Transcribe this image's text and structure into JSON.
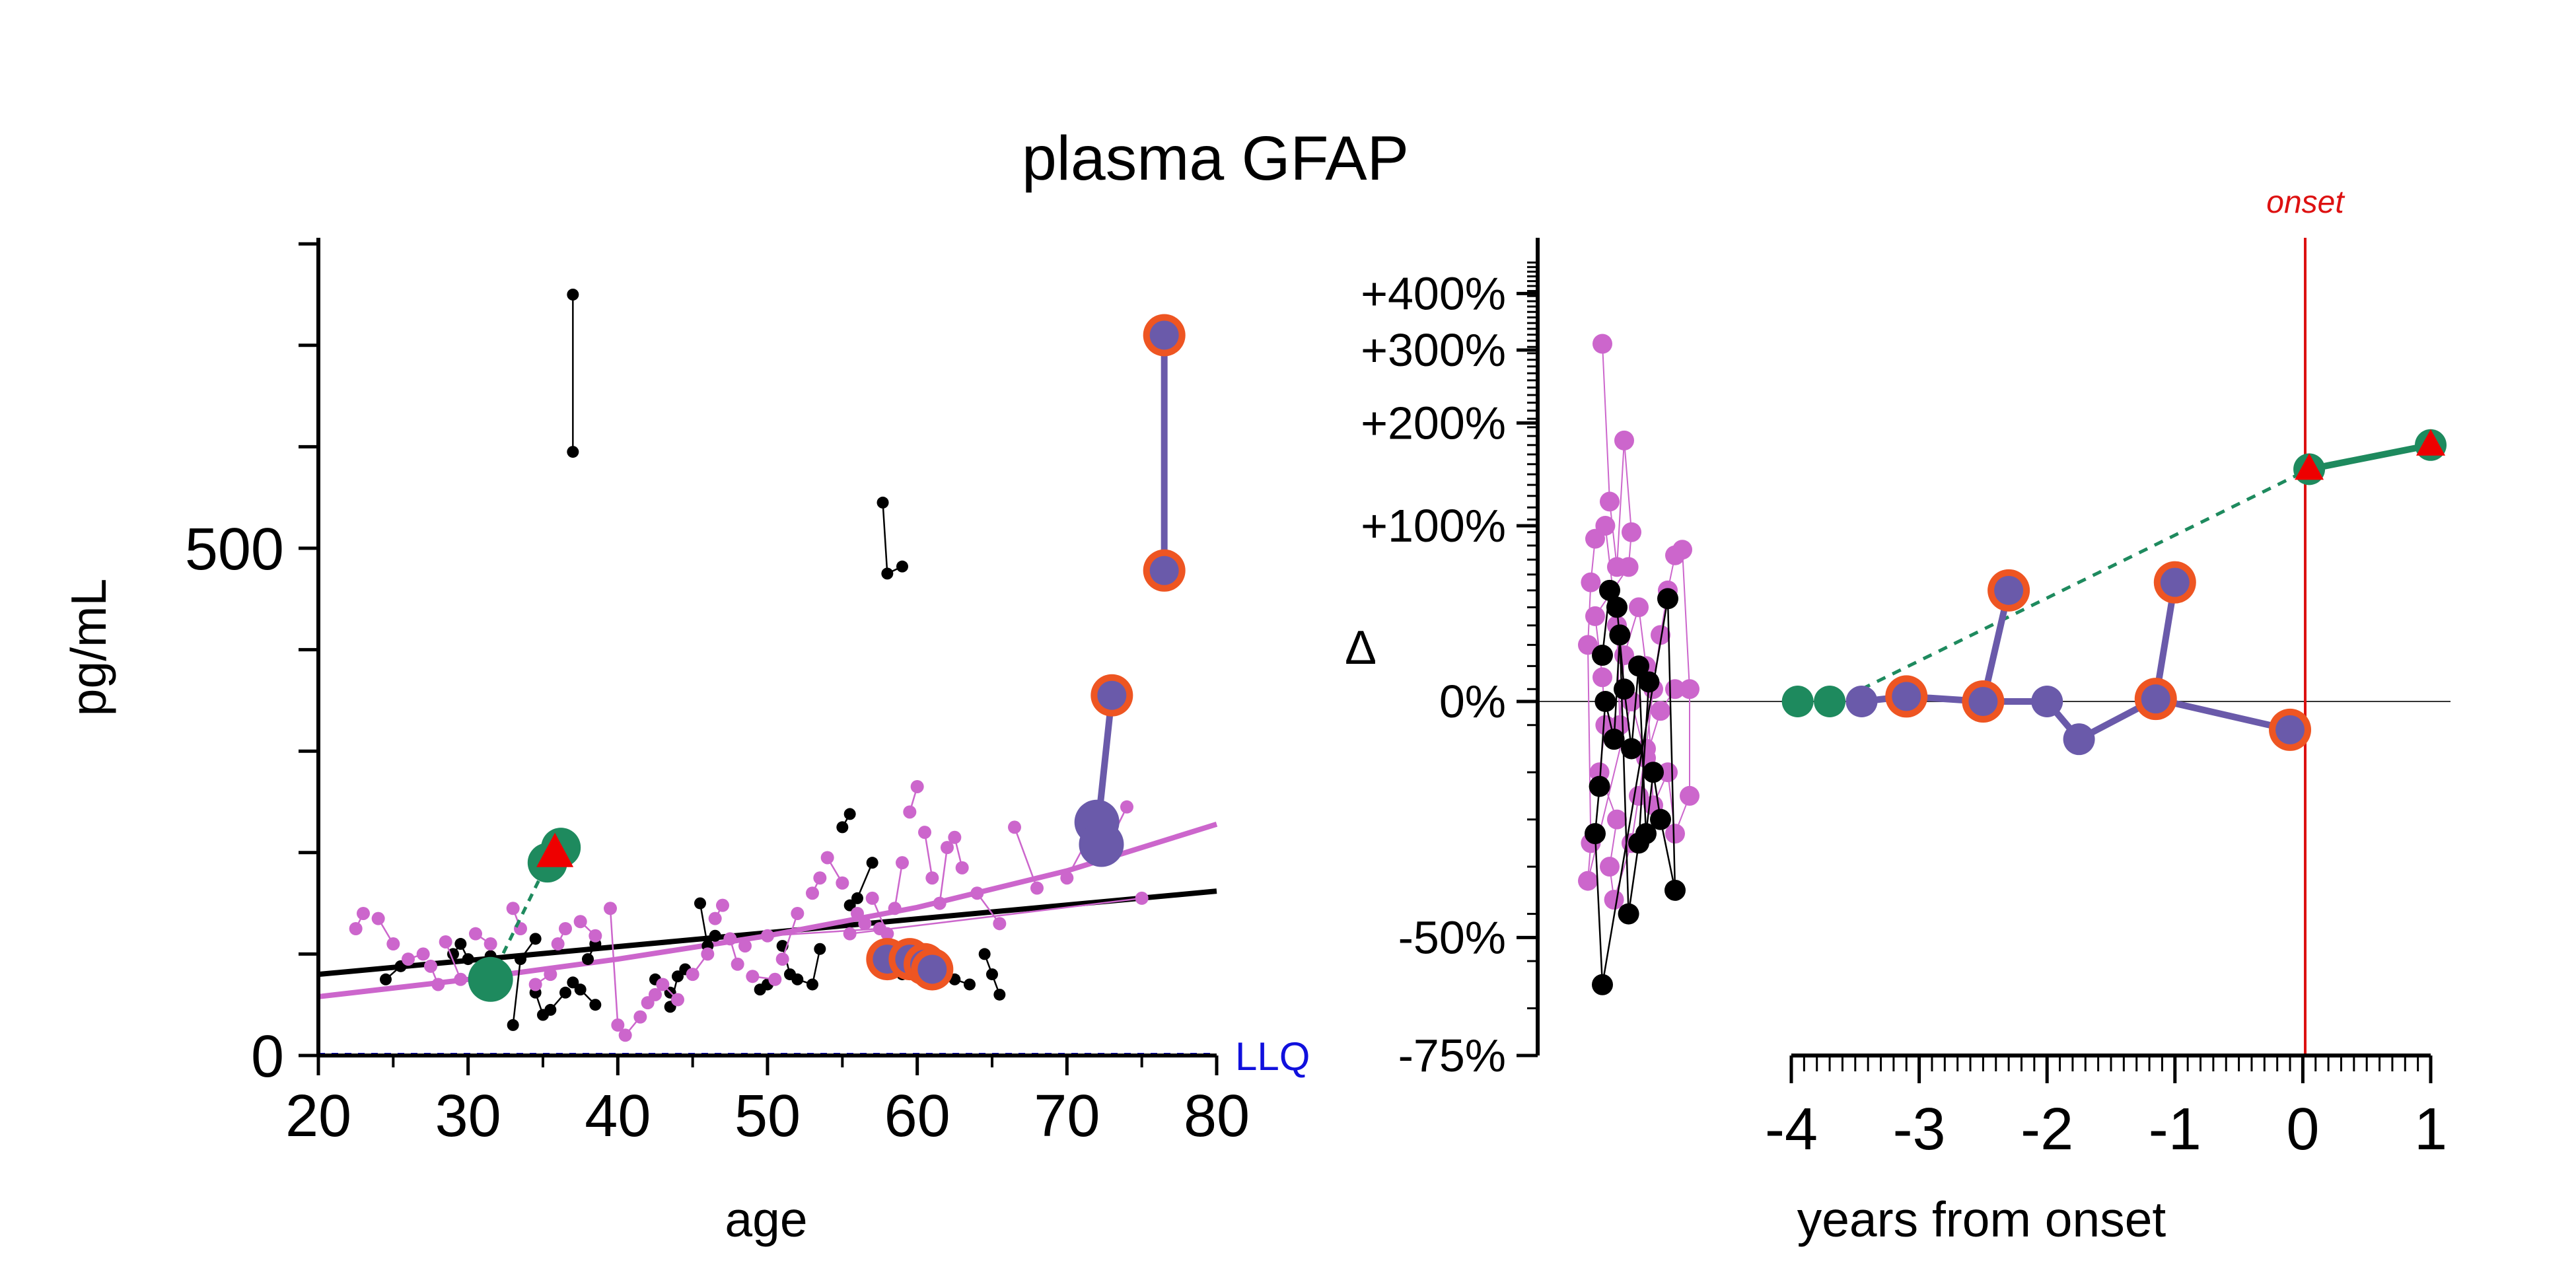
{
  "chart_data": [
    {
      "type": "scatter",
      "title": "plasma GFAP",
      "xlabel": "age",
      "ylabel": "pg/mL",
      "xlim": [
        20,
        80
      ],
      "ylim": [
        0,
        800
      ],
      "xticks": [
        20,
        30,
        40,
        50,
        60,
        70,
        80
      ],
      "yticks_labeled": [
        0,
        500
      ],
      "yticks_minor": [
        100,
        200,
        300,
        400,
        600,
        700,
        800
      ],
      "llq_label": "LLQ",
      "llq_value": 0,
      "colors": {
        "controls": "#000000",
        "noncarriers": "#cc66cc",
        "converter_green": "#1e8a5e",
        "converter_purple": "#6a5aaa",
        "ring_orange": "#ee5522",
        "red_triangle": "#ee0000",
        "llq_line": "#1010dd"
      },
      "fit_lines": [
        {
          "color": "#000000",
          "x": [
            20,
            80
          ],
          "y": [
            80,
            162
          ]
        },
        {
          "color": "#cc66cc",
          "x": [
            20,
            30,
            40,
            50,
            60,
            70,
            80
          ],
          "y": [
            58,
            75,
            95,
            118,
            146,
            182,
            228
          ]
        }
      ],
      "black_pairs": [
        [
          [
            37.0,
            750
          ],
          [
            37.0,
            595
          ]
        ],
        [
          [
            57.7,
            545
          ],
          [
            58.0,
            475
          ],
          [
            59.0,
            482
          ]
        ],
        [
          [
            24.5,
            75
          ],
          [
            25.5,
            88
          ]
        ],
        [
          [
            29.0,
            100
          ],
          [
            29.5,
            110
          ],
          [
            30.0,
            95
          ]
        ],
        [
          [
            31.5,
            98
          ],
          [
            32.5,
            82
          ]
        ],
        [
          [
            33.0,
            30
          ],
          [
            33.5,
            95
          ],
          [
            34.5,
            115
          ]
        ],
        [
          [
            34.5,
            62
          ],
          [
            35.0,
            40
          ]
        ],
        [
          [
            35.5,
            45
          ],
          [
            36.5,
            62
          ]
        ],
        [
          [
            37.0,
            72
          ],
          [
            37.5,
            65
          ],
          [
            38.5,
            50
          ]
        ],
        [
          [
            38.5,
            110
          ],
          [
            38.0,
            95
          ]
        ],
        [
          [
            42.5,
            75
          ],
          [
            43.5,
            62
          ]
        ],
        [
          [
            43.5,
            48
          ],
          [
            44.0,
            78
          ],
          [
            44.5,
            85
          ]
        ],
        [
          [
            45.5,
            150
          ],
          [
            46.0,
            108
          ],
          [
            46.5,
            118
          ]
        ],
        [
          [
            49.5,
            65
          ],
          [
            50.0,
            70
          ]
        ],
        [
          [
            51.0,
            108
          ],
          [
            51.5,
            80
          ]
        ],
        [
          [
            52.0,
            75
          ],
          [
            53.0,
            70
          ],
          [
            53.5,
            105
          ]
        ],
        [
          [
            55.0,
            225
          ],
          [
            55.5,
            238
          ]
        ],
        [
          [
            55.5,
            148
          ],
          [
            56.0,
            155
          ],
          [
            57.0,
            190
          ]
        ],
        [
          [
            58.0,
            85
          ],
          [
            59.0,
            80
          ]
        ],
        [
          [
            60.5,
            95
          ],
          [
            61.0,
            85
          ]
        ],
        [
          [
            64.5,
            100
          ],
          [
            65.0,
            80
          ],
          [
            65.5,
            60
          ]
        ],
        [
          [
            62.5,
            75
          ],
          [
            63.5,
            70
          ]
        ]
      ],
      "pink_points": [
        [
          22.5,
          125
        ],
        [
          23.0,
          140
        ],
        [
          24.0,
          135
        ],
        [
          25.0,
          110
        ],
        [
          26.0,
          95
        ],
        [
          27.0,
          100
        ],
        [
          27.5,
          88
        ],
        [
          28.0,
          70
        ],
        [
          28.5,
          112
        ],
        [
          29.5,
          75
        ],
        [
          30.5,
          120
        ],
        [
          31.5,
          110
        ],
        [
          33.0,
          145
        ],
        [
          33.5,
          125
        ],
        [
          34.5,
          70
        ],
        [
          35.5,
          80
        ],
        [
          36.0,
          110
        ],
        [
          36.5,
          125
        ],
        [
          37.5,
          132
        ],
        [
          38.5,
          118
        ],
        [
          39.5,
          145
        ],
        [
          40.0,
          30
        ],
        [
          40.5,
          20
        ],
        [
          41.5,
          38
        ],
        [
          42.0,
          52
        ],
        [
          42.5,
          60
        ],
        [
          43.0,
          70
        ],
        [
          44.0,
          55
        ],
        [
          45.0,
          80
        ],
        [
          46.0,
          100
        ],
        [
          46.5,
          135
        ],
        [
          47.0,
          148
        ],
        [
          47.5,
          115
        ],
        [
          48.0,
          90
        ],
        [
          49.0,
          78
        ],
        [
          50.5,
          75
        ],
        [
          51.0,
          95
        ],
        [
          52.0,
          140
        ],
        [
          53.0,
          160
        ],
        [
          53.5,
          175
        ],
        [
          54.0,
          195
        ],
        [
          55.0,
          170
        ],
        [
          56.0,
          140
        ],
        [
          56.5,
          130
        ],
        [
          57.0,
          155
        ],
        [
          58.0,
          120
        ],
        [
          58.5,
          145
        ],
        [
          59.0,
          190
        ],
        [
          59.5,
          240
        ],
        [
          60.0,
          265
        ],
        [
          60.5,
          220
        ],
        [
          61.0,
          175
        ],
        [
          61.5,
          150
        ],
        [
          62.0,
          205
        ],
        [
          62.5,
          215
        ],
        [
          63.0,
          185
        ],
        [
          64.0,
          160
        ],
        [
          65.5,
          130
        ],
        [
          66.5,
          225
        ],
        [
          68.0,
          165
        ],
        [
          70.0,
          175
        ],
        [
          72.0,
          230
        ],
        [
          73.0,
          215
        ],
        [
          74.0,
          245
        ],
        [
          75.0,
          155
        ],
        [
          55.5,
          120
        ],
        [
          57.5,
          125
        ],
        [
          50.0,
          118
        ],
        [
          48.5,
          108
        ]
      ],
      "green_converter": [
        [
          31.5,
          75
        ],
        [
          35.3,
          190
        ],
        [
          36.2,
          205
        ]
      ],
      "red_triangle": [
        35.8,
        200
      ],
      "purple_converter_big": [
        [
          72.0,
          230
        ],
        [
          72.3,
          208
        ]
      ],
      "purple_converter_line": [
        [
          72.1,
          230
        ],
        [
          73.0,
          355
        ]
      ],
      "purple_converter_points": [
        [
          73.0,
          355
        ],
        [
          76.5,
          710
        ],
        [
          76.5,
          478
        ],
        [
          58.0,
          95
        ],
        [
          59.5,
          95
        ],
        [
          60.5,
          90
        ],
        [
          61.0,
          85
        ]
      ],
      "top_pair_line": [
        [
          76.5,
          710
        ],
        [
          76.5,
          478
        ]
      ]
    },
    {
      "type": "scatter",
      "xlabel": "years from onset",
      "ylabel": "Δ",
      "xlim": [
        -4,
        1
      ],
      "xticks": [
        -4,
        -3,
        -2,
        -1,
        0,
        1
      ],
      "yticks_labeled": [
        "-75%",
        "-50%",
        "0%",
        "+100%",
        "+200%",
        "+300%",
        "+400%"
      ],
      "ytick_values": [
        -75,
        -50,
        0,
        100,
        200,
        300,
        400
      ],
      "onset_label": "onset",
      "onset_x": 0,
      "pink_strip": [
        [
          -6.8,
          310
        ],
        [
          -6.75,
          120
        ],
        [
          -6.7,
          70
        ],
        [
          -6.65,
          180
        ],
        [
          -6.6,
          95
        ],
        [
          -6.62,
          70
        ],
        [
          -6.85,
          40
        ],
        [
          -6.8,
          10
        ],
        [
          -6.78,
          -5
        ],
        [
          -6.82,
          -15
        ],
        [
          -6.7,
          -25
        ],
        [
          -6.75,
          -35
        ],
        [
          -6.72,
          -42
        ],
        [
          -6.6,
          -30
        ],
        [
          -6.55,
          -20
        ],
        [
          -6.5,
          -10
        ],
        [
          -6.45,
          5
        ],
        [
          -6.4,
          30
        ],
        [
          -6.35,
          55
        ],
        [
          -6.3,
          78
        ],
        [
          -6.25,
          82
        ],
        [
          -6.2,
          5
        ],
        [
          -6.2,
          -20
        ],
        [
          -6.3,
          -28
        ],
        [
          -6.35,
          -15
        ],
        [
          -6.45,
          -22
        ],
        [
          -6.5,
          15
        ],
        [
          -6.55,
          45
        ],
        [
          -6.65,
          20
        ],
        [
          -6.68,
          -5
        ],
        [
          -6.7,
          35
        ],
        [
          -6.78,
          100
        ],
        [
          -6.85,
          90
        ],
        [
          -6.88,
          60
        ],
        [
          -6.9,
          25
        ],
        [
          -6.88,
          -30
        ],
        [
          -6.9,
          -38
        ],
        [
          -6.6,
          0
        ],
        [
          -6.5,
          -12
        ],
        [
          -6.4,
          -2
        ],
        [
          -6.3,
          5
        ]
      ],
      "black_strip": [
        [
          -6.8,
          20
        ],
        [
          -6.75,
          55
        ],
        [
          -6.7,
          45
        ],
        [
          -6.65,
          5
        ],
        [
          -6.6,
          -10
        ],
        [
          -6.55,
          15
        ],
        [
          -6.5,
          -28
        ],
        [
          -6.45,
          -15
        ],
        [
          -6.4,
          -25
        ],
        [
          -6.3,
          -40
        ],
        [
          -6.35,
          50
        ],
        [
          -6.8,
          -60
        ],
        [
          -6.85,
          -28
        ],
        [
          -6.82,
          -18
        ],
        [
          -6.78,
          0
        ],
        [
          -6.72,
          -8
        ],
        [
          -6.68,
          30
        ],
        [
          -6.62,
          -45
        ],
        [
          -6.55,
          -30
        ],
        [
          -6.48,
          8
        ]
      ],
      "green_line_solid": [
        [
          0.05,
          150
        ],
        [
          1.0,
          175
        ]
      ],
      "green_line_dashed": [
        [
          -3.45,
          5
        ],
        [
          0.05,
          150
        ]
      ],
      "green_points": [
        [
          -3.95,
          0
        ],
        [
          -3.7,
          0
        ],
        [
          0.05,
          150
        ],
        [
          1.0,
          175
        ]
      ],
      "red_triangles": [
        [
          0.05,
          150
        ],
        [
          1.0,
          175
        ]
      ],
      "purple_line": [
        [
          -3.45,
          0
        ],
        [
          -3.1,
          2
        ],
        [
          -2.5,
          0
        ],
        [
          -2.3,
          55
        ],
        [
          -2.5,
          0
        ],
        [
          -2.0,
          0
        ],
        [
          -1.75,
          -8
        ],
        [
          -1.15,
          1
        ],
        [
          -1.0,
          60
        ],
        [
          -1.15,
          1
        ],
        [
          -0.1,
          -6
        ]
      ],
      "purple_ringed": [
        [
          -3.1,
          2
        ],
        [
          -2.5,
          0
        ],
        [
          -2.3,
          55
        ],
        [
          -1.15,
          1
        ],
        [
          -1.0,
          60
        ],
        [
          -0.1,
          -6
        ]
      ],
      "purple_plain": [
        [
          -3.45,
          0
        ],
        [
          -2.0,
          0
        ],
        [
          -1.75,
          -8
        ]
      ]
    }
  ]
}
